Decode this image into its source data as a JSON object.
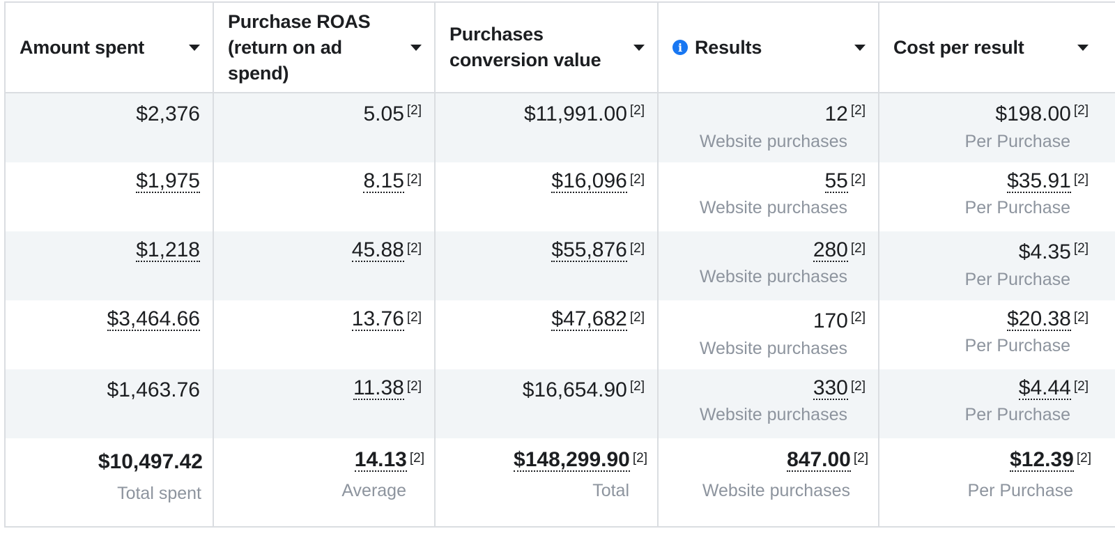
{
  "columns": [
    {
      "label": "Amount spent",
      "info_icon": false
    },
    {
      "label": "Purchase ROAS (return on ad spend)",
      "info_icon": false
    },
    {
      "label": "Purchases conversion value",
      "info_icon": false
    },
    {
      "label": "Results",
      "info_icon": true
    },
    {
      "label": "Cost per result",
      "info_icon": false
    }
  ],
  "footnote": "[2]",
  "rows": [
    {
      "amount_spent": "$2,376",
      "roas": "5.05",
      "conversion_value": "$11,991.00",
      "results": "12",
      "results_sub": "Website purchases",
      "cost_per_result": "$198.00",
      "cost_sub": "Per Purchase"
    },
    {
      "amount_spent": "$1,975",
      "roas": "8.15",
      "conversion_value": "$16,096",
      "results": "55",
      "results_sub": "Website purchases",
      "cost_per_result": "$35.91",
      "cost_sub": "Per Purchase"
    },
    {
      "amount_spent": "$1,218",
      "roas": "45.88",
      "conversion_value": "$55,876",
      "results": "280",
      "results_sub": "Website purchases",
      "cost_per_result": "$4.35",
      "cost_sub": "Per Purchase"
    },
    {
      "amount_spent": "$3,464.66",
      "roas": "13.76",
      "conversion_value": "$47,682",
      "results": "170",
      "results_sub": "Website purchases",
      "cost_per_result": "$20.38",
      "cost_sub": "Per Purchase"
    },
    {
      "amount_spent": "$1,463.76",
      "roas": "11.38",
      "conversion_value": "$16,654.90",
      "results": "330",
      "results_sub": "Website purchases",
      "cost_per_result": "$4.44",
      "cost_sub": "Per Purchase"
    }
  ],
  "totals": {
    "amount_spent": "$10,497.42",
    "amount_spent_sub": "Total spent",
    "roas": "14.13",
    "roas_sub": "Average",
    "conversion_value": "$148,299.90",
    "conversion_value_sub": "Total",
    "results": "847.00",
    "results_sub": "Website purchases",
    "cost_per_result": "$12.39",
    "cost_sub": "Per Purchase"
  },
  "colors": {
    "border": "#dadde1",
    "row_shade": "#f2f5f7",
    "subtext": "#8d949e",
    "info_icon": "#1877f2",
    "text": "#1c1e21"
  }
}
